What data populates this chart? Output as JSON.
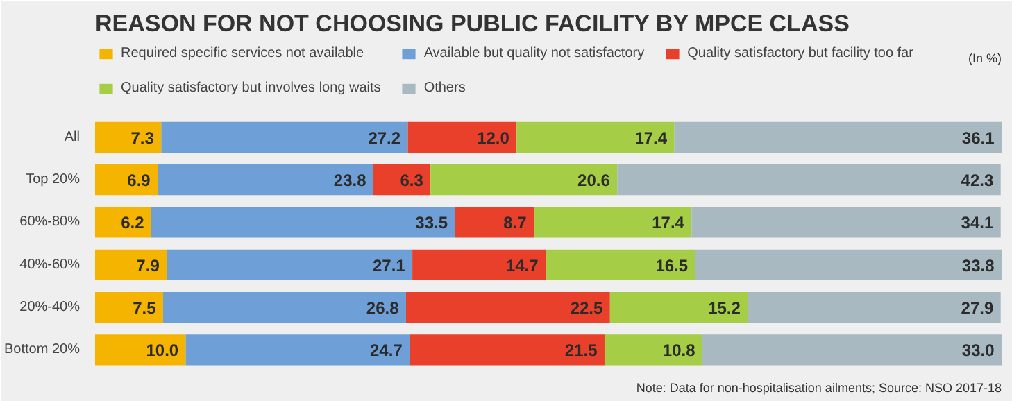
{
  "chart_data": {
    "type": "bar",
    "orientation": "horizontal",
    "stacked": true,
    "title": "REASON FOR NOT CHOOSING PUBLIC FACILITY BY MPCE CLASS",
    "categories": [
      "All",
      "Top 20%",
      "60%-80%",
      "40%-60%",
      "20%-40%",
      "Bottom 20%"
    ],
    "series": [
      {
        "name": "Required specific services not available",
        "color": "#f5b400",
        "values": [
          7.3,
          6.9,
          6.2,
          7.9,
          7.5,
          10.0
        ],
        "value_labels": [
          "7.3",
          "6.9",
          "6.2",
          "7.9",
          "7.5",
          "10.0"
        ]
      },
      {
        "name": "Available but quality not satisfactory",
        "color": "#6e9fd6",
        "values": [
          27.2,
          23.8,
          33.5,
          27.1,
          26.8,
          24.7
        ],
        "value_labels": [
          "27.2",
          "23.8",
          "33.5",
          "27.1",
          "26.8",
          "24.7"
        ]
      },
      {
        "name": "Quality satisfactory but facility too far",
        "color": "#e8402b",
        "values": [
          12.0,
          6.3,
          8.7,
          14.7,
          22.5,
          21.5
        ],
        "value_labels": [
          "12.0",
          "6.3",
          "8.7",
          "14.7",
          "22.5",
          "21.5"
        ]
      },
      {
        "name": "Quality satisfactory but involves long waits",
        "color": "#a5cd45",
        "values": [
          17.4,
          20.6,
          17.4,
          16.5,
          15.2,
          10.8
        ],
        "value_labels": [
          "17.4",
          "20.6",
          "17.4",
          "16.5",
          "15.2",
          "10.8"
        ]
      },
      {
        "name": "Others",
        "color": "#a9b9c1",
        "values": [
          36.1,
          42.3,
          34.1,
          33.8,
          27.9,
          33.0
        ],
        "value_labels": [
          "36.1",
          "42.3",
          "34.1",
          "33.8",
          "27.9",
          "33.0"
        ]
      }
    ],
    "legend": "top",
    "grid": false,
    "annotations": [
      "(In %)",
      "Note: Data for non-hospitalisation ailments; Source: NSO 2017-18"
    ]
  }
}
